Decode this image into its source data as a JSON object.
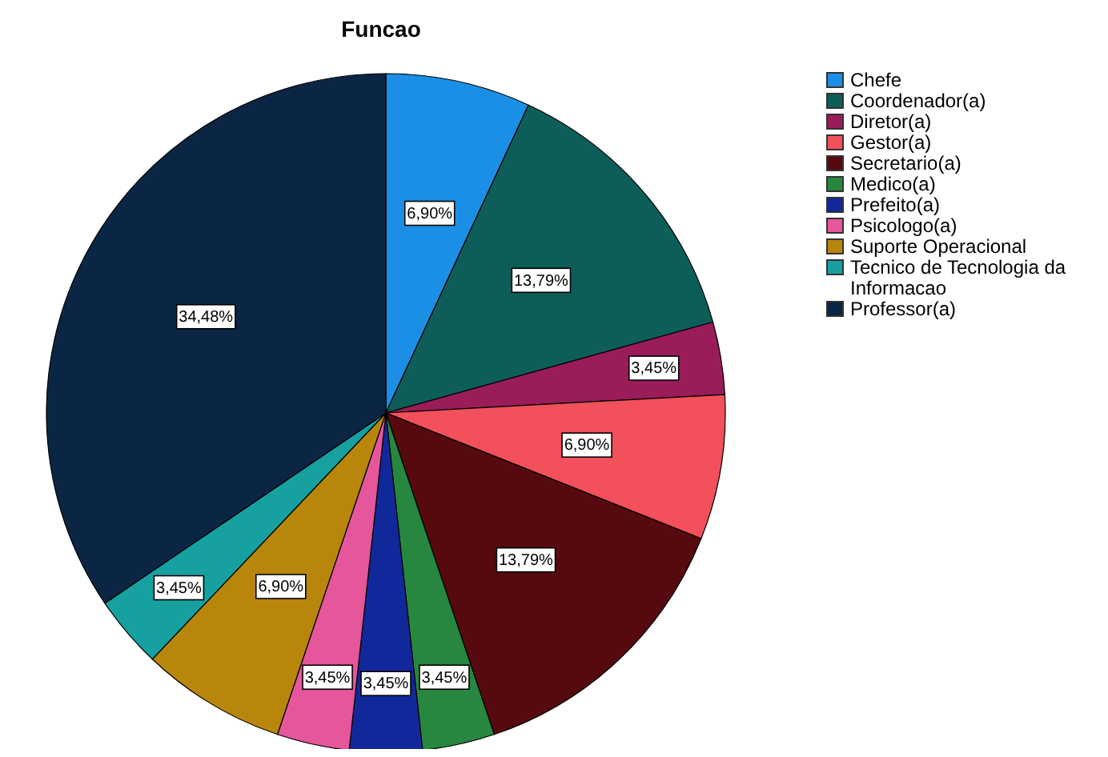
{
  "chart_data": {
    "type": "pie",
    "title": "Funcao",
    "categories": [
      "Chefe",
      "Coordenador(a)",
      "Diretor(a)",
      "Gestor(a)",
      "Secretario(a)",
      "Medico(a)",
      "Prefeito(a)",
      "Psicologo(a)",
      "Suporte Operacional",
      "Tecnico de Tecnologia da Informacao",
      "Professor(a)"
    ],
    "values": [
      6.9,
      13.79,
      3.45,
      6.9,
      13.79,
      3.45,
      3.45,
      3.45,
      6.9,
      3.45,
      34.48
    ],
    "value_labels": [
      "6,90%",
      "13,79%",
      "3,45%",
      "6,90%",
      "13,79%",
      "3,45%",
      "3,45%",
      "3,45%",
      "6,90%",
      "3,45%",
      "34,48%"
    ],
    "colors": [
      "#1b8fe6",
      "#0d5e58",
      "#9a1c58",
      "#f2505a",
      "#560a0f",
      "#27873e",
      "#11289a",
      "#e6569a",
      "#b8860b",
      "#17a0a0",
      "#0b2645"
    ],
    "legend": "top right"
  }
}
